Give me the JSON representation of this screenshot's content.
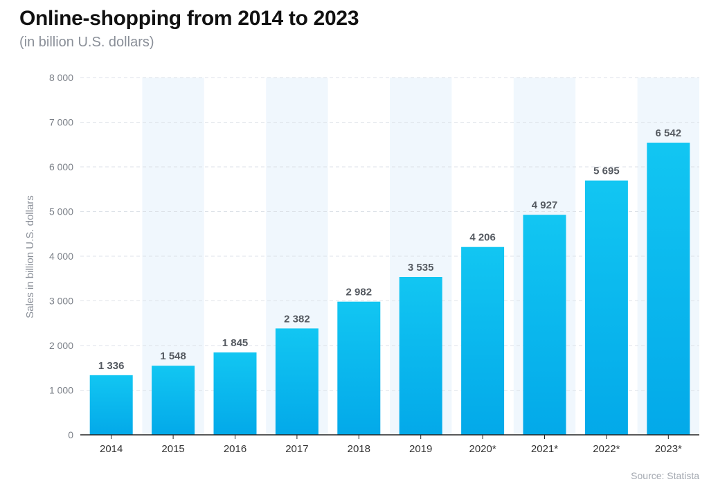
{
  "header": {
    "title": "Online-shopping from 2014 to 2023",
    "subtitle": "(in billion U.S. dollars)"
  },
  "footer": {
    "source": "Source: Statista"
  },
  "colors": {
    "bar_top": "#12c6f2",
    "bar_bottom": "#03a9e9",
    "band": "#f0f7fd",
    "grid": "#dde2e8"
  },
  "chart_data": {
    "type": "bar",
    "title": "Online-shopping from 2014 to 2023",
    "subtitle": "(in billion U.S. dollars)",
    "ylabel": "Sales in billion U.S. dollars",
    "xlabel": "",
    "categories": [
      "2014",
      "2015",
      "2016",
      "2017",
      "2018",
      "2019",
      "2020*",
      "2021*",
      "2022*",
      "2023*"
    ],
    "values": [
      1336,
      1548,
      1845,
      2382,
      2982,
      3535,
      4206,
      4927,
      5695,
      6542
    ],
    "value_labels": [
      "1 336",
      "1 548",
      "1 845",
      "2 382",
      "2 982",
      "3 535",
      "4 206",
      "4 927",
      "5 695",
      "6 542"
    ],
    "ylim": [
      0,
      8000
    ],
    "yticks": [
      0,
      1000,
      2000,
      3000,
      4000,
      5000,
      6000,
      7000,
      8000
    ],
    "ytick_labels": [
      "0",
      "1 000",
      "2 000",
      "3 000",
      "4 000",
      "5 000",
      "6 000",
      "7 000",
      "8 000"
    ],
    "grid": true,
    "legend": "none"
  }
}
